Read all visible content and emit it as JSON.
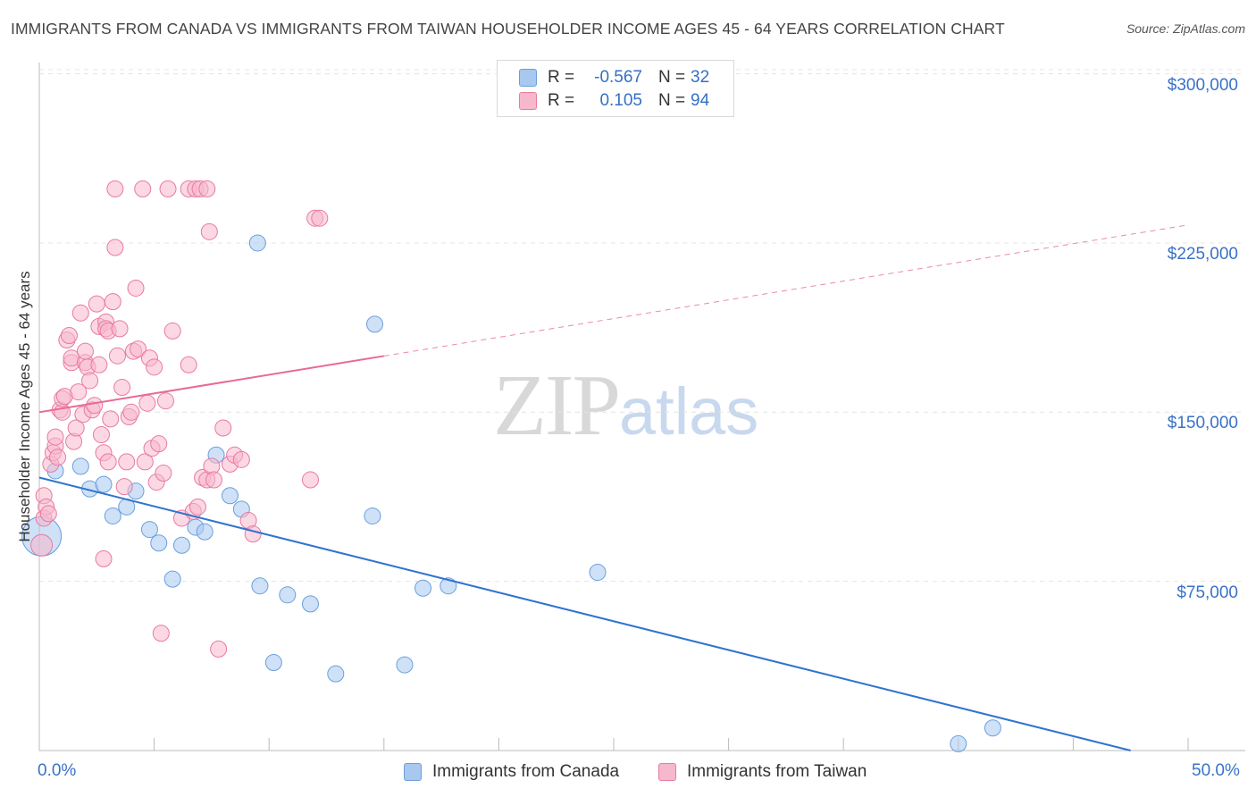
{
  "header": {
    "title": "IMMIGRANTS FROM CANADA VS IMMIGRANTS FROM TAIWAN HOUSEHOLDER INCOME AGES 45 - 64 YEARS CORRELATION CHART",
    "source": "Source: ZipAtlas.com"
  },
  "watermark": {
    "zip": "ZIP",
    "atlas": "atlas"
  },
  "legend": {
    "rows": [
      {
        "r_label": "R =",
        "r_value": "-0.567",
        "n_label": "N =",
        "n_value": "32",
        "color": "#a8c8f0",
        "border": "#6a9fdd"
      },
      {
        "r_label": "R =",
        "r_value": "0.105",
        "n_label": "N =",
        "n_value": "94",
        "color": "#f7b8cc",
        "border": "#e87aa0"
      }
    ]
  },
  "bottom_legend": {
    "canada": "Immigrants from Canada",
    "taiwan": "Immigrants from Taiwan"
  },
  "chart_data": {
    "type": "scatter",
    "title": "IMMIGRANTS FROM CANADA VS IMMIGRANTS FROM TAIWAN HOUSEHOLDER INCOME AGES 45 - 64 YEARS CORRELATION CHART",
    "xlabel": "",
    "ylabel": "Householder Income Ages 45 - 64 years",
    "xlim": [
      0,
      50
    ],
    "ylim": [
      0,
      305000
    ],
    "x_tick_labels": [
      "0.0%",
      "50.0%"
    ],
    "y_ticks": [
      75000,
      150000,
      225000,
      300000
    ],
    "y_tick_labels": [
      "$75,000",
      "$150,000",
      "$225,000",
      "$300,000"
    ],
    "grid": true,
    "series": [
      {
        "name": "Immigrants from Canada",
        "color": "#a8c8f0",
        "stroke": "#6a9fdd",
        "trend_color": "#2f74d0",
        "trend": {
          "x0": 0,
          "y0": 121000,
          "x1": 47.5,
          "y1": 0,
          "dashed_from": null
        },
        "points": [
          [
            0.1,
            95000,
            22
          ],
          [
            0.7,
            124000,
            9
          ],
          [
            1.8,
            126000,
            9
          ],
          [
            2.2,
            116000,
            9
          ],
          [
            2.8,
            118000,
            9
          ],
          [
            3.2,
            104000,
            9
          ],
          [
            3.8,
            108000,
            9
          ],
          [
            4.2,
            115000,
            9
          ],
          [
            4.8,
            98000,
            9
          ],
          [
            5.2,
            92000,
            9
          ],
          [
            5.8,
            76000,
            9
          ],
          [
            6.2,
            91000,
            9
          ],
          [
            6.8,
            99000,
            9
          ],
          [
            7.2,
            97000,
            9
          ],
          [
            7.7,
            131000,
            9
          ],
          [
            8.3,
            113000,
            9
          ],
          [
            8.8,
            107000,
            9
          ],
          [
            9.5,
            225000,
            9
          ],
          [
            9.6,
            73000,
            9
          ],
          [
            10.2,
            39000,
            9
          ],
          [
            10.8,
            69000,
            9
          ],
          [
            11.8,
            65000,
            9
          ],
          [
            12.9,
            34000,
            9
          ],
          [
            14.6,
            189000,
            9
          ],
          [
            14.5,
            104000,
            9
          ],
          [
            15.9,
            38000,
            9
          ],
          [
            16.7,
            72000,
            9
          ],
          [
            17.8,
            73000,
            9
          ],
          [
            24.3,
            79000,
            9
          ],
          [
            40.0,
            3000,
            9
          ],
          [
            41.5,
            10000,
            9
          ]
        ]
      },
      {
        "name": "Immigrants from Taiwan",
        "color": "#f7b8cc",
        "stroke": "#e87aa0",
        "trend_color": "#e86a94",
        "trend": {
          "x0": 0,
          "y0": 150000,
          "x1": 50,
          "y1": 233000,
          "dashed_from": 15
        },
        "points": [
          [
            0.1,
            91000,
            12
          ],
          [
            0.2,
            103000,
            9
          ],
          [
            0.2,
            113000,
            9
          ],
          [
            0.3,
            108000,
            9
          ],
          [
            0.4,
            105000,
            9
          ],
          [
            0.5,
            127000,
            9
          ],
          [
            0.6,
            132000,
            9
          ],
          [
            0.7,
            135000,
            9
          ],
          [
            0.7,
            139000,
            9
          ],
          [
            0.8,
            130000,
            9
          ],
          [
            0.9,
            151000,
            9
          ],
          [
            1.0,
            150000,
            9
          ],
          [
            1.0,
            156000,
            9
          ],
          [
            1.1,
            157000,
            9
          ],
          [
            1.2,
            182000,
            9
          ],
          [
            1.3,
            184000,
            9
          ],
          [
            1.4,
            172000,
            9
          ],
          [
            1.4,
            174000,
            9
          ],
          [
            1.5,
            137000,
            9
          ],
          [
            1.6,
            143000,
            9
          ],
          [
            1.7,
            159000,
            9
          ],
          [
            1.8,
            194000,
            9
          ],
          [
            1.9,
            149000,
            9
          ],
          [
            2.0,
            172000,
            9
          ],
          [
            2.0,
            177000,
            9
          ],
          [
            2.1,
            170000,
            9
          ],
          [
            2.2,
            164000,
            9
          ],
          [
            2.3,
            151000,
            9
          ],
          [
            2.4,
            153000,
            9
          ],
          [
            2.5,
            198000,
            9
          ],
          [
            2.6,
            171000,
            9
          ],
          [
            2.6,
            188000,
            9
          ],
          [
            2.7,
            140000,
            9
          ],
          [
            2.8,
            132000,
            9
          ],
          [
            2.9,
            190000,
            9
          ],
          [
            2.9,
            187000,
            9
          ],
          [
            3.0,
            128000,
            9
          ],
          [
            3.0,
            186000,
            9
          ],
          [
            3.1,
            147000,
            9
          ],
          [
            3.2,
            199000,
            9
          ],
          [
            3.3,
            223000,
            9
          ],
          [
            3.3,
            249000,
            9
          ],
          [
            3.4,
            175000,
            9
          ],
          [
            3.5,
            187000,
            9
          ],
          [
            3.6,
            161000,
            9
          ],
          [
            3.7,
            117000,
            9
          ],
          [
            3.8,
            128000,
            9
          ],
          [
            3.9,
            148000,
            9
          ],
          [
            4.0,
            150000,
            9
          ],
          [
            4.1,
            177000,
            9
          ],
          [
            4.2,
            205000,
            9
          ],
          [
            4.3,
            178000,
            9
          ],
          [
            4.5,
            249000,
            9
          ],
          [
            4.6,
            128000,
            9
          ],
          [
            4.7,
            154000,
            9
          ],
          [
            4.8,
            174000,
            9
          ],
          [
            4.9,
            134000,
            9
          ],
          [
            5.0,
            170000,
            9
          ],
          [
            5.1,
            119000,
            9
          ],
          [
            5.2,
            136000,
            9
          ],
          [
            5.3,
            52000,
            9
          ],
          [
            5.4,
            123000,
            9
          ],
          [
            5.5,
            155000,
            9
          ],
          [
            5.6,
            249000,
            9
          ],
          [
            5.8,
            186000,
            9
          ],
          [
            6.2,
            103000,
            9
          ],
          [
            6.5,
            249000,
            9
          ],
          [
            6.5,
            171000,
            9
          ],
          [
            6.7,
            106000,
            9
          ],
          [
            6.8,
            249000,
            9
          ],
          [
            6.9,
            108000,
            9
          ],
          [
            7.0,
            249000,
            9
          ],
          [
            7.1,
            121000,
            9
          ],
          [
            7.3,
            120000,
            9
          ],
          [
            7.3,
            249000,
            9
          ],
          [
            7.4,
            230000,
            9
          ],
          [
            7.5,
            126000,
            9
          ],
          [
            7.6,
            120000,
            9
          ],
          [
            7.8,
            45000,
            9
          ],
          [
            8.0,
            143000,
            9
          ],
          [
            8.3,
            127000,
            9
          ],
          [
            8.5,
            131000,
            9
          ],
          [
            8.8,
            129000,
            9
          ],
          [
            9.1,
            102000,
            9
          ],
          [
            9.3,
            96000,
            9
          ],
          [
            11.8,
            120000,
            9
          ],
          [
            12.0,
            236000,
            9
          ],
          [
            12.2,
            236000,
            9
          ],
          [
            2.8,
            85000,
            9
          ]
        ]
      }
    ]
  }
}
